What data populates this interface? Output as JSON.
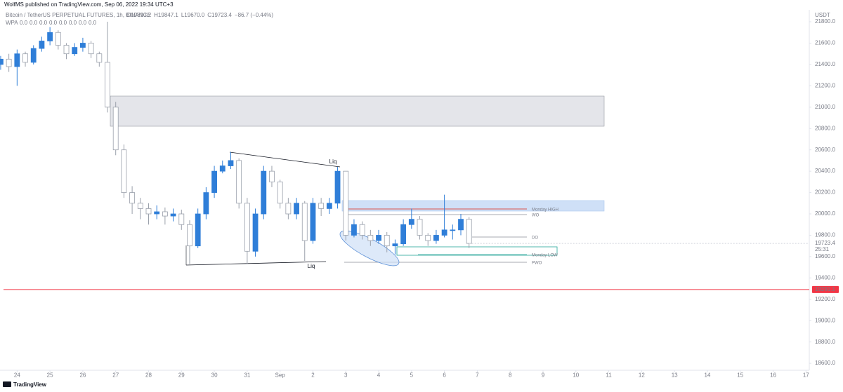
{
  "header": {
    "publisher": "WolfMS published on TradingView.com, Sep 06, 2022 19:34 UTC+3"
  },
  "legend": {
    "symbol": "Bitcoin / TetherUS PERPETUAL FUTURES, 1h, BINANCE",
    "ohlc": [
      "O19810.2",
      "H19847.1",
      "L19670.0",
      "C19723.4",
      "−86.7 (−0.44%)"
    ],
    "indicator": "WPA",
    "indicator_values": [
      "0.0",
      "0.0",
      "0.0",
      "0.0",
      "0.0",
      "0.0",
      "0.0",
      "0.0"
    ]
  },
  "currency": "USDT",
  "annotations": [
    "Liq",
    "Liq",
    "Monday HIGH",
    "WO",
    "DO",
    "Monday LOW",
    "PWO"
  ],
  "footer": "TradingView",
  "chart_data": {
    "type": "candlestick",
    "x": [
      -0.5,
      -0.25,
      0,
      0.25,
      0.5,
      0.75,
      1,
      1.25,
      1.5,
      1.75,
      2,
      2.25,
      2.5,
      2.75,
      3,
      3.25,
      3.5,
      3.75,
      4,
      4.25,
      4.5,
      4.75,
      5,
      5.25,
      5.5,
      5.75,
      6,
      6.25,
      6.5,
      6.75,
      7,
      7.25,
      7.5,
      7.75,
      8,
      8.25,
      8.5,
      8.75,
      9,
      9.25,
      9.5,
      9.75,
      10,
      10.25,
      10.5,
      10.75,
      11,
      11.25,
      11.5,
      11.75,
      12,
      12.25,
      12.5,
      12.75,
      13,
      13.25,
      13.5,
      13.75
    ],
    "open": [
      21400,
      21450,
      21380,
      21500,
      21420,
      21550,
      21620,
      21700,
      21580,
      21500,
      21560,
      21600,
      21500,
      21420,
      21000,
      20600,
      20200,
      20100,
      20050,
      20000,
      20020,
      19980,
      20000,
      19900,
      19700,
      20000,
      20200,
      20400,
      20450,
      20500,
      20100,
      19650,
      20000,
      20400,
      20300,
      20100,
      20000,
      20100,
      19750,
      20100,
      20050,
      20100,
      20400,
      19800,
      19900,
      19800,
      19750,
      19800,
      19700,
      19720,
      19900,
      19950,
      19800,
      19750,
      19800,
      19850,
      19850,
      19950
    ],
    "high": [
      21480,
      21500,
      21540,
      21520,
      21580,
      21660,
      21750,
      21720,
      21600,
      21600,
      21650,
      21620,
      21520,
      21800,
      21050,
      20650,
      20260,
      20150,
      20100,
      20080,
      20060,
      20050,
      20040,
      19940,
      20050,
      20250,
      20450,
      20500,
      20580,
      20520,
      20150,
      20050,
      20450,
      20450,
      20320,
      20150,
      20150,
      20120,
      20150,
      20150,
      20150,
      20440,
      20400,
      19950,
      19930,
      19850,
      19850,
      19830,
      19760,
      19950,
      20050,
      19980,
      19820,
      19850,
      20180,
      19900,
      20000,
      19970
    ],
    "low": [
      21350,
      21330,
      21200,
      21380,
      21400,
      21520,
      21580,
      21540,
      21450,
      21480,
      21520,
      21460,
      21380,
      20950,
      20550,
      20150,
      20000,
      19950,
      19900,
      19950,
      19900,
      19930,
      19850,
      19530,
      19680,
      19950,
      20150,
      20380,
      20420,
      20050,
      19530,
      19600,
      19950,
      20250,
      20050,
      19950,
      19950,
      19560,
      19720,
      19980,
      20000,
      20050,
      19750,
      19780,
      19760,
      19700,
      19720,
      19640,
      19620,
      19700,
      19860,
      19760,
      19700,
      19720,
      19780,
      19760,
      19800,
      19680
    ],
    "close": [
      21450,
      21380,
      21500,
      21420,
      21550,
      21620,
      21700,
      21580,
      21500,
      21560,
      21600,
      21500,
      21420,
      21000,
      20600,
      20200,
      20100,
      20050,
      20000,
      20020,
      19980,
      20000,
      19900,
      19700,
      20000,
      20200,
      20400,
      20450,
      20500,
      20100,
      19650,
      20000,
      20400,
      20300,
      20100,
      20000,
      20100,
      19750,
      20100,
      20050,
      20100,
      20400,
      19800,
      19900,
      19800,
      19750,
      19800,
      19700,
      19720,
      19900,
      19950,
      19800,
      19750,
      19800,
      19850,
      19850,
      19950,
      19723.4
    ],
    "up_color": "#2f7ed8",
    "down_color": "#9aa0ab",
    "xlim": [
      -0.52,
      24.1
    ],
    "xticks": [
      {
        "value": 0,
        "label": "24"
      },
      {
        "value": 1,
        "label": "25"
      },
      {
        "value": 2,
        "label": "26"
      },
      {
        "value": 3,
        "label": "27"
      },
      {
        "value": 4,
        "label": "28"
      },
      {
        "value": 5,
        "label": "29"
      },
      {
        "value": 6,
        "label": "30"
      },
      {
        "value": 7,
        "label": "31"
      },
      {
        "value": 8,
        "label": "Sep"
      },
      {
        "value": 9,
        "label": "2"
      },
      {
        "value": 10,
        "label": "3"
      },
      {
        "value": 11,
        "label": "4"
      },
      {
        "value": 12,
        "label": "5"
      },
      {
        "value": 13,
        "label": "6"
      },
      {
        "value": 14,
        "label": "7"
      },
      {
        "value": 15,
        "label": "8"
      },
      {
        "value": 16,
        "label": "9"
      },
      {
        "value": 17,
        "label": "10"
      },
      {
        "value": 18,
        "label": "11"
      },
      {
        "value": 19,
        "label": "12"
      },
      {
        "value": 20,
        "label": "13"
      },
      {
        "value": 21,
        "label": "14"
      },
      {
        "value": 22,
        "label": "15"
      },
      {
        "value": 23,
        "label": "16"
      },
      {
        "value": 24,
        "label": "17"
      }
    ],
    "ylim": [
      18535,
      21912
    ],
    "yticks": [
      {
        "value": 21800,
        "label": "21800.0"
      },
      {
        "value": 21600,
        "label": "21600.0"
      },
      {
        "value": 21400,
        "label": "21400.0"
      },
      {
        "value": 21200,
        "label": "21200.0"
      },
      {
        "value": 21000,
        "label": "21000.0"
      },
      {
        "value": 20800,
        "label": "20800.0"
      },
      {
        "value": 20600,
        "label": "20600.0"
      },
      {
        "value": 20400,
        "label": "20400.0"
      },
      {
        "value": 20200,
        "label": "20200.0"
      },
      {
        "value": 20000,
        "label": "20000.0"
      },
      {
        "value": 19800,
        "label": "19800.0"
      },
      {
        "value": 19600,
        "label": "19600.0"
      },
      {
        "value": 19400,
        "label": "19400.0"
      },
      {
        "value": 19200,
        "label": "19200.0"
      },
      {
        "value": 19000,
        "label": "19000.0"
      },
      {
        "value": 18800,
        "label": "18800.0"
      },
      {
        "value": 18600,
        "label": "18600.0"
      }
    ],
    "grid": false,
    "last_price": 19723.4,
    "countdown": "25:31",
    "alert_level": 19291.1,
    "alert_color": "#f23645"
  }
}
